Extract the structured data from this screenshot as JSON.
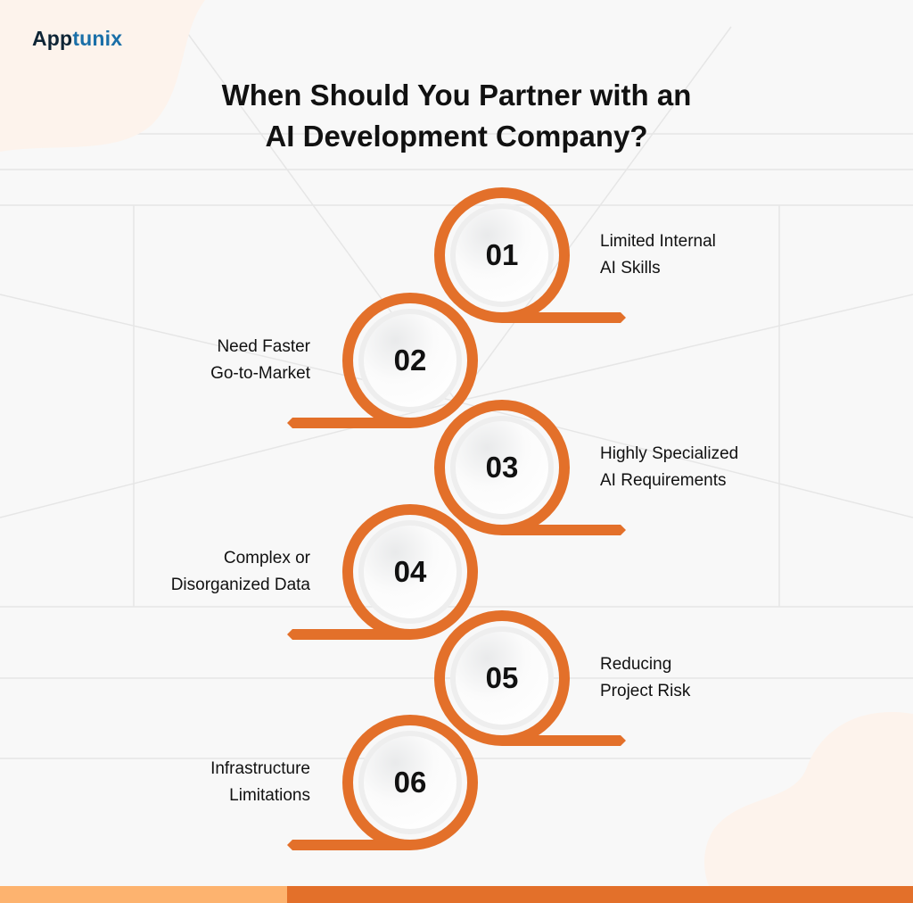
{
  "brand": {
    "logo_part1": "App",
    "logo_part2": "tunix"
  },
  "title_line1": "When Should You Partner with an",
  "title_line2": "AI Development Company?",
  "colors": {
    "accent": "#e3702a",
    "accent_light": "#fdb36f",
    "blob": "#fdf3ec",
    "logo_dark": "#0f2536",
    "logo_blue": "#1a6fa8"
  },
  "steps": [
    {
      "number": "01",
      "line1": "Limited Internal",
      "line2": "AI Skills",
      "side": "right"
    },
    {
      "number": "02",
      "line1": "Need Faster",
      "line2": "Go-to-Market",
      "side": "left"
    },
    {
      "number": "03",
      "line1": "Highly Specialized",
      "line2": "AI Requirements",
      "side": "right"
    },
    {
      "number": "04",
      "line1": "Complex or",
      "line2": "Disorganized Data",
      "side": "left"
    },
    {
      "number": "05",
      "line1": "Reducing",
      "line2": "Project Risk",
      "side": "right"
    },
    {
      "number": "06",
      "line1": "Infrastructure",
      "line2": "Limitations",
      "side": "left"
    }
  ]
}
